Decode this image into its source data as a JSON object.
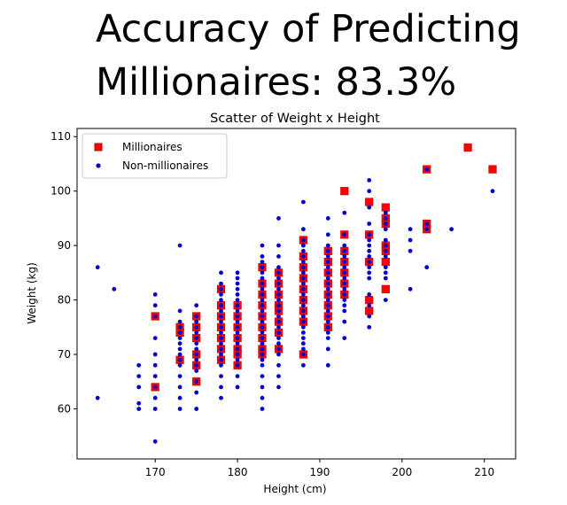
{
  "headline": {
    "line1": "Accuracy of Predicting",
    "line2": "Millionaires: 83.3%"
  },
  "colors": {
    "millionaire_marker": "#ff0000",
    "millionaire_edge": "#c00000",
    "non_millionaire_marker": "#0000cc",
    "axes": "#000000"
  },
  "chart_data": {
    "type": "scatter",
    "title": "Scatter of Weight x Height",
    "xlabel": "Height (cm)",
    "ylabel": "Weight (kg)",
    "xlim": [
      160.5,
      213.8
    ],
    "ylim": [
      50.8,
      111.5
    ],
    "xticks": [
      170,
      180,
      190,
      200,
      210
    ],
    "yticks": [
      60,
      70,
      80,
      90,
      100,
      110
    ],
    "grid": false,
    "legend_position": "top-left",
    "series": [
      {
        "name": "Millionaires",
        "marker": "square",
        "points": [
          [
            170,
            77
          ],
          [
            170,
            64
          ],
          [
            173,
            75
          ],
          [
            173,
            74
          ],
          [
            173,
            69
          ],
          [
            175,
            77
          ],
          [
            175,
            75
          ],
          [
            175,
            73
          ],
          [
            175,
            70
          ],
          [
            175,
            68
          ],
          [
            175,
            65
          ],
          [
            178,
            82
          ],
          [
            178,
            79
          ],
          [
            178,
            77
          ],
          [
            178,
            75
          ],
          [
            178,
            73
          ],
          [
            178,
            71
          ],
          [
            178,
            69
          ],
          [
            180,
            79
          ],
          [
            180,
            77
          ],
          [
            180,
            75
          ],
          [
            180,
            73
          ],
          [
            180,
            71
          ],
          [
            180,
            70
          ],
          [
            180,
            68
          ],
          [
            183,
            86
          ],
          [
            183,
            83
          ],
          [
            183,
            81
          ],
          [
            183,
            79
          ],
          [
            183,
            77
          ],
          [
            183,
            75
          ],
          [
            183,
            73
          ],
          [
            183,
            71
          ],
          [
            183,
            70
          ],
          [
            185,
            85
          ],
          [
            185,
            83
          ],
          [
            185,
            81
          ],
          [
            185,
            79
          ],
          [
            185,
            78
          ],
          [
            185,
            76
          ],
          [
            185,
            74
          ],
          [
            185,
            71
          ],
          [
            188,
            91
          ],
          [
            188,
            88
          ],
          [
            188,
            86
          ],
          [
            188,
            84
          ],
          [
            188,
            82
          ],
          [
            188,
            80
          ],
          [
            188,
            78
          ],
          [
            188,
            76
          ],
          [
            188,
            70
          ],
          [
            191,
            89
          ],
          [
            191,
            87
          ],
          [
            191,
            85
          ],
          [
            191,
            83
          ],
          [
            191,
            81
          ],
          [
            191,
            79
          ],
          [
            191,
            77
          ],
          [
            191,
            75
          ],
          [
            193,
            100
          ],
          [
            193,
            92
          ],
          [
            193,
            89
          ],
          [
            193,
            87
          ],
          [
            193,
            85
          ],
          [
            193,
            83
          ],
          [
            193,
            81
          ],
          [
            196,
            98
          ],
          [
            196,
            92
          ],
          [
            196,
            87
          ],
          [
            196,
            80
          ],
          [
            196,
            78
          ],
          [
            198,
            97
          ],
          [
            198,
            95
          ],
          [
            198,
            94
          ],
          [
            198,
            90
          ],
          [
            198,
            89
          ],
          [
            198,
            87
          ],
          [
            198,
            82
          ],
          [
            203,
            104
          ],
          [
            203,
            94
          ],
          [
            203,
            93
          ],
          [
            208,
            108
          ],
          [
            211,
            104
          ]
        ]
      },
      {
        "name": "Non-millionaires",
        "marker": "circle",
        "points": [
          [
            163,
            86
          ],
          [
            163,
            62
          ],
          [
            165,
            82
          ],
          [
            168,
            68
          ],
          [
            168,
            66
          ],
          [
            168,
            64
          ],
          [
            168,
            61
          ],
          [
            168,
            60
          ],
          [
            170,
            81
          ],
          [
            170,
            79
          ],
          [
            170,
            77
          ],
          [
            170,
            73
          ],
          [
            170,
            70
          ],
          [
            170,
            68
          ],
          [
            170,
            66
          ],
          [
            170,
            64
          ],
          [
            170,
            62
          ],
          [
            170,
            60
          ],
          [
            170,
            54
          ],
          [
            173,
            90
          ],
          [
            173,
            78
          ],
          [
            173,
            76
          ],
          [
            173,
            75
          ],
          [
            173,
            74
          ],
          [
            173,
            73
          ],
          [
            173,
            72
          ],
          [
            173,
            71
          ],
          [
            173,
            70
          ],
          [
            173,
            69
          ],
          [
            173,
            68
          ],
          [
            173,
            66
          ],
          [
            173,
            64
          ],
          [
            173,
            62
          ],
          [
            173,
            60
          ],
          [
            175,
            79
          ],
          [
            175,
            77
          ],
          [
            175,
            76
          ],
          [
            175,
            75
          ],
          [
            175,
            74
          ],
          [
            175,
            73
          ],
          [
            175,
            72
          ],
          [
            175,
            71
          ],
          [
            175,
            70
          ],
          [
            175,
            69
          ],
          [
            175,
            68
          ],
          [
            175,
            67
          ],
          [
            175,
            65
          ],
          [
            175,
            63
          ],
          [
            175,
            60
          ],
          [
            178,
            85
          ],
          [
            178,
            83
          ],
          [
            178,
            82
          ],
          [
            178,
            81
          ],
          [
            178,
            80
          ],
          [
            178,
            79
          ],
          [
            178,
            78
          ],
          [
            178,
            77
          ],
          [
            178,
            76
          ],
          [
            178,
            75
          ],
          [
            178,
            74
          ],
          [
            178,
            73
          ],
          [
            178,
            72
          ],
          [
            178,
            71
          ],
          [
            178,
            70
          ],
          [
            178,
            69
          ],
          [
            178,
            68
          ],
          [
            178,
            66
          ],
          [
            178,
            64
          ],
          [
            178,
            62
          ],
          [
            180,
            85
          ],
          [
            180,
            84
          ],
          [
            180,
            83
          ],
          [
            180,
            82
          ],
          [
            180,
            81
          ],
          [
            180,
            80
          ],
          [
            180,
            79
          ],
          [
            180,
            78
          ],
          [
            180,
            77
          ],
          [
            180,
            76
          ],
          [
            180,
            75
          ],
          [
            180,
            74
          ],
          [
            180,
            73
          ],
          [
            180,
            72
          ],
          [
            180,
            71
          ],
          [
            180,
            70
          ],
          [
            180,
            69
          ],
          [
            180,
            68
          ],
          [
            180,
            66
          ],
          [
            180,
            64
          ],
          [
            183,
            90
          ],
          [
            183,
            88
          ],
          [
            183,
            87
          ],
          [
            183,
            86
          ],
          [
            183,
            85
          ],
          [
            183,
            84
          ],
          [
            183,
            83
          ],
          [
            183,
            82
          ],
          [
            183,
            81
          ],
          [
            183,
            80
          ],
          [
            183,
            79
          ],
          [
            183,
            78
          ],
          [
            183,
            77
          ],
          [
            183,
            76
          ],
          [
            183,
            75
          ],
          [
            183,
            74
          ],
          [
            183,
            73
          ],
          [
            183,
            72
          ],
          [
            183,
            71
          ],
          [
            183,
            70
          ],
          [
            183,
            69
          ],
          [
            183,
            68
          ],
          [
            183,
            66
          ],
          [
            183,
            64
          ],
          [
            183,
            62
          ],
          [
            183,
            60
          ],
          [
            185,
            95
          ],
          [
            185,
            90
          ],
          [
            185,
            88
          ],
          [
            185,
            86
          ],
          [
            185,
            85
          ],
          [
            185,
            84
          ],
          [
            185,
            83
          ],
          [
            185,
            82
          ],
          [
            185,
            81
          ],
          [
            185,
            80
          ],
          [
            185,
            79
          ],
          [
            185,
            78
          ],
          [
            185,
            77
          ],
          [
            185,
            76
          ],
          [
            185,
            75
          ],
          [
            185,
            74
          ],
          [
            185,
            73
          ],
          [
            185,
            72
          ],
          [
            185,
            71
          ],
          [
            185,
            70
          ],
          [
            185,
            68
          ],
          [
            185,
            66
          ],
          [
            185,
            64
          ],
          [
            188,
            98
          ],
          [
            188,
            93
          ],
          [
            188,
            91
          ],
          [
            188,
            90
          ],
          [
            188,
            89
          ],
          [
            188,
            88
          ],
          [
            188,
            87
          ],
          [
            188,
            86
          ],
          [
            188,
            85
          ],
          [
            188,
            84
          ],
          [
            188,
            83
          ],
          [
            188,
            82
          ],
          [
            188,
            81
          ],
          [
            188,
            80
          ],
          [
            188,
            79
          ],
          [
            188,
            78
          ],
          [
            188,
            77
          ],
          [
            188,
            76
          ],
          [
            188,
            75
          ],
          [
            188,
            74
          ],
          [
            188,
            73
          ],
          [
            188,
            72
          ],
          [
            188,
            71
          ],
          [
            188,
            70
          ],
          [
            188,
            68
          ],
          [
            191,
            95
          ],
          [
            191,
            92
          ],
          [
            191,
            90
          ],
          [
            191,
            89
          ],
          [
            191,
            88
          ],
          [
            191,
            87
          ],
          [
            191,
            86
          ],
          [
            191,
            85
          ],
          [
            191,
            84
          ],
          [
            191,
            83
          ],
          [
            191,
            82
          ],
          [
            191,
            81
          ],
          [
            191,
            80
          ],
          [
            191,
            79
          ],
          [
            191,
            78
          ],
          [
            191,
            77
          ],
          [
            191,
            76
          ],
          [
            191,
            75
          ],
          [
            191,
            74
          ],
          [
            191,
            73
          ],
          [
            191,
            71
          ],
          [
            191,
            68
          ],
          [
            193,
            96
          ],
          [
            193,
            92
          ],
          [
            193,
            90
          ],
          [
            193,
            89
          ],
          [
            193,
            88
          ],
          [
            193,
            87
          ],
          [
            193,
            86
          ],
          [
            193,
            85
          ],
          [
            193,
            84
          ],
          [
            193,
            83
          ],
          [
            193,
            82
          ],
          [
            193,
            81
          ],
          [
            193,
            80
          ],
          [
            193,
            79
          ],
          [
            193,
            78
          ],
          [
            193,
            76
          ],
          [
            193,
            73
          ],
          [
            196,
            102
          ],
          [
            196,
            100
          ],
          [
            196,
            97
          ],
          [
            196,
            94
          ],
          [
            196,
            92
          ],
          [
            196,
            91
          ],
          [
            196,
            90
          ],
          [
            196,
            89
          ],
          [
            196,
            88
          ],
          [
            196,
            87
          ],
          [
            196,
            86
          ],
          [
            196,
            85
          ],
          [
            196,
            84
          ],
          [
            196,
            81
          ],
          [
            196,
            79
          ],
          [
            196,
            77
          ],
          [
            196,
            75
          ],
          [
            198,
            96
          ],
          [
            198,
            95
          ],
          [
            198,
            94
          ],
          [
            198,
            93
          ],
          [
            198,
            91
          ],
          [
            198,
            90
          ],
          [
            198,
            89
          ],
          [
            198,
            88
          ],
          [
            198,
            86
          ],
          [
            198,
            85
          ],
          [
            198,
            84
          ],
          [
            198,
            80
          ],
          [
            201,
            93
          ],
          [
            201,
            91
          ],
          [
            201,
            89
          ],
          [
            201,
            82
          ],
          [
            203,
            104
          ],
          [
            203,
            94
          ],
          [
            203,
            93
          ],
          [
            203,
            86
          ],
          [
            206,
            93
          ],
          [
            211,
            100
          ]
        ]
      }
    ]
  }
}
